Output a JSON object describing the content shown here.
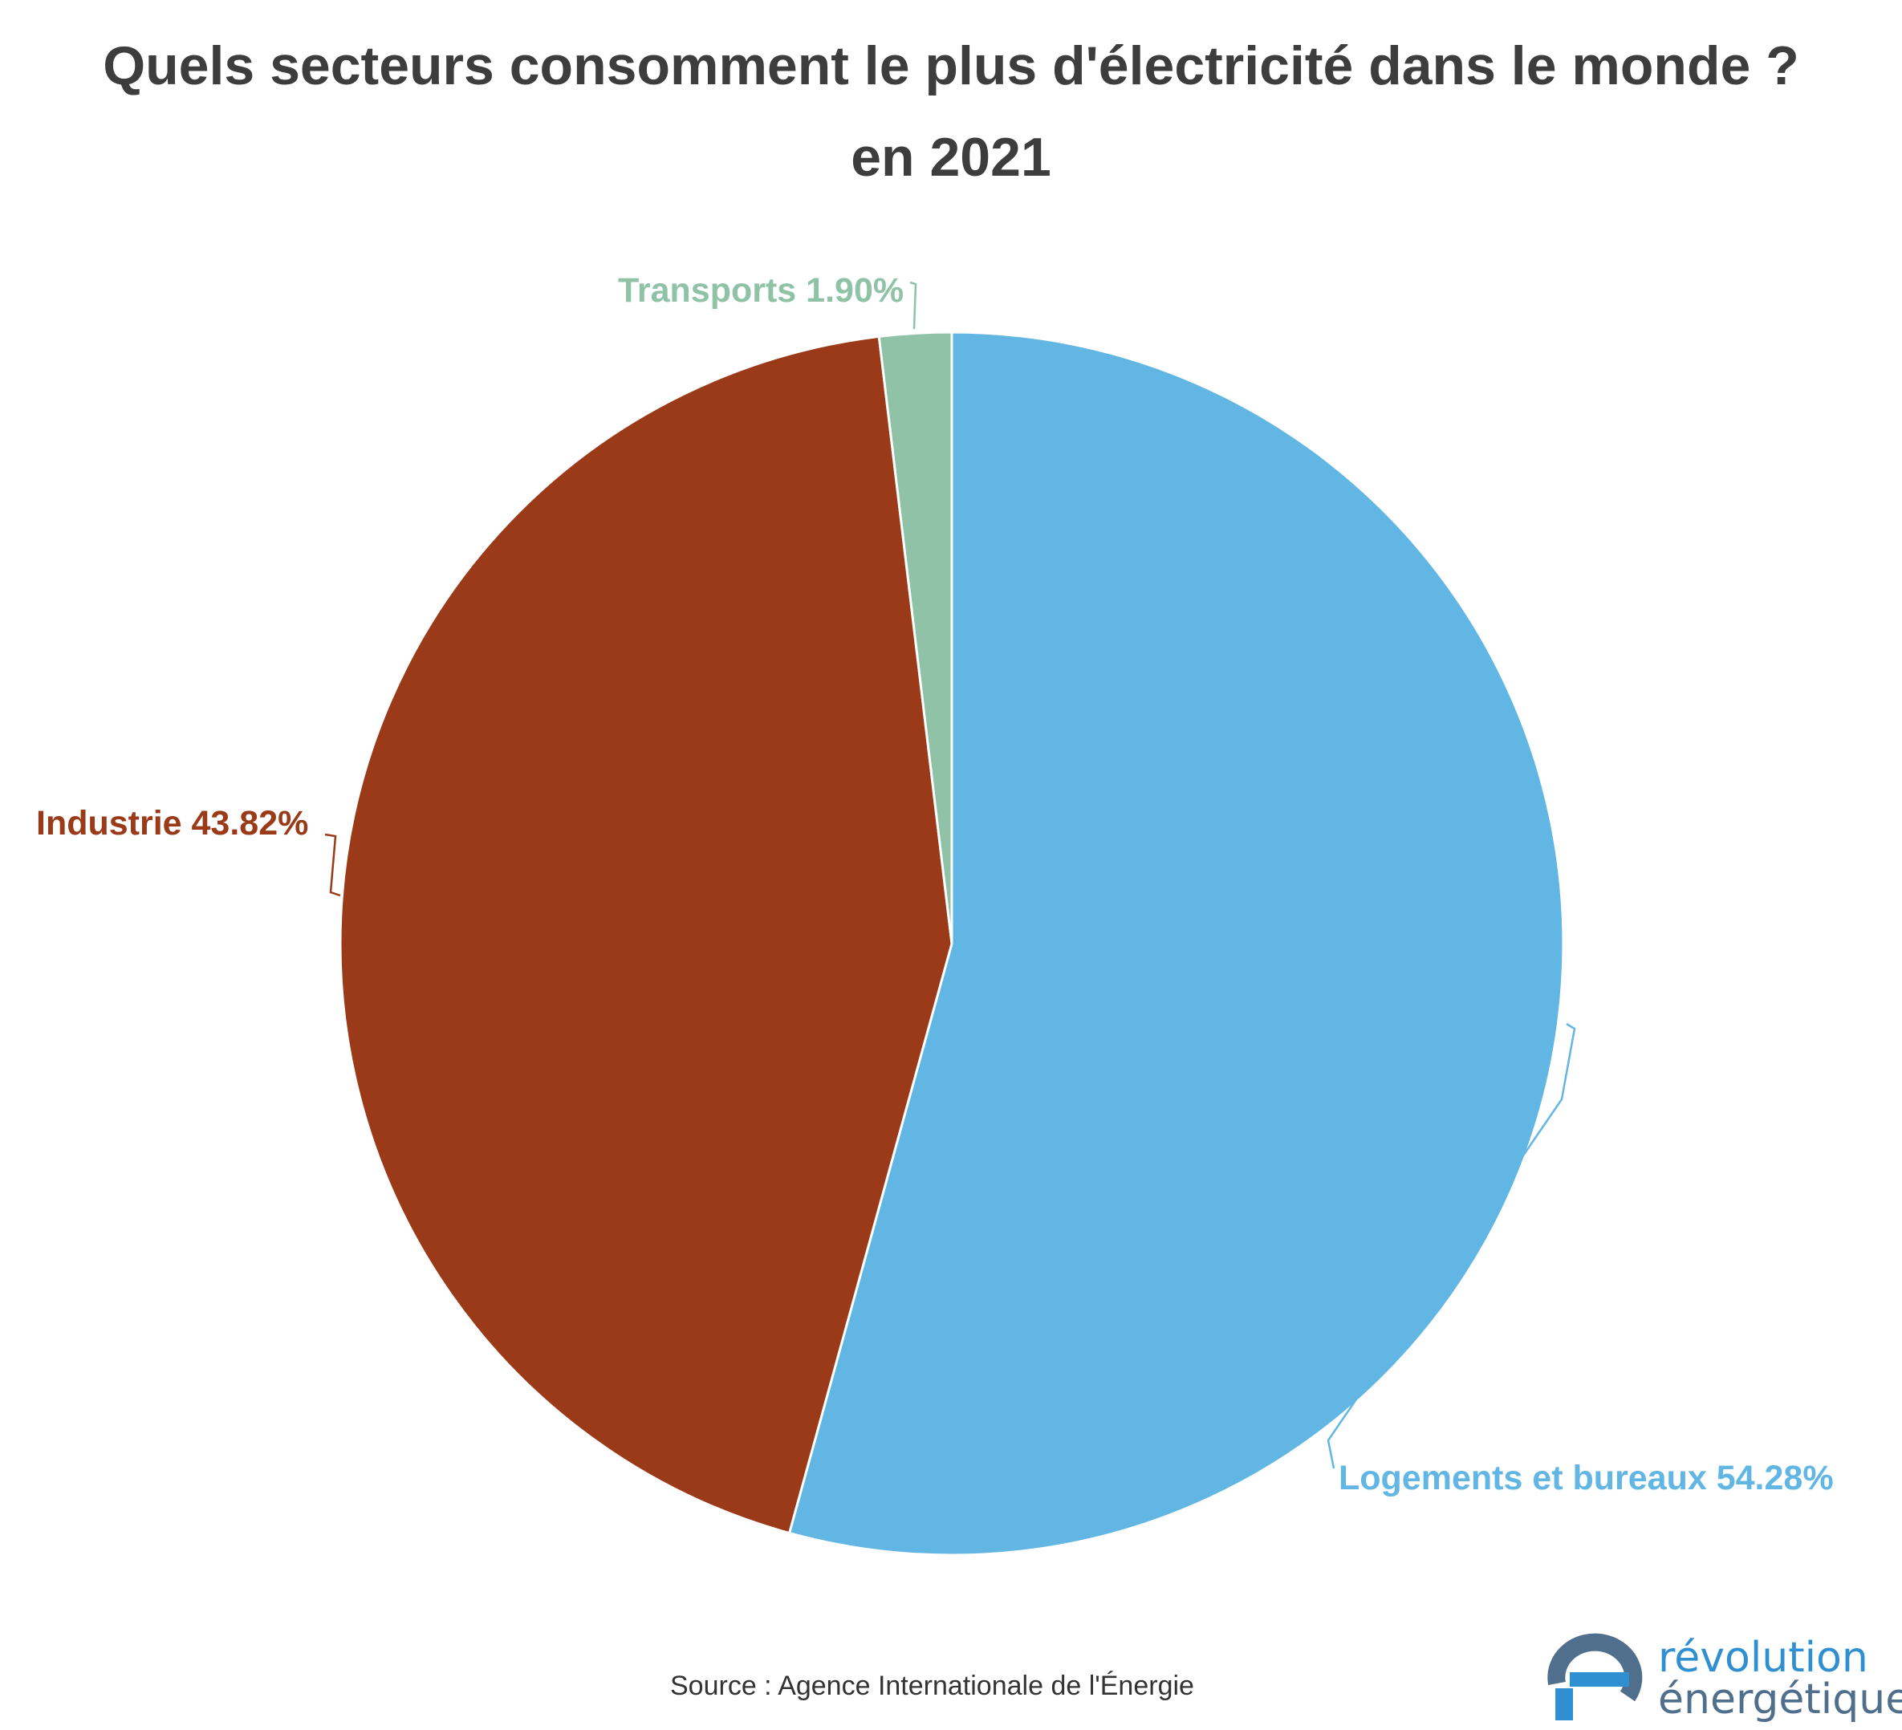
{
  "chart_data": {
    "type": "pie",
    "title": "Quels secteurs consomment le plus d'électricité dans le monde ?",
    "subtitle": "en 2021",
    "slices": [
      {
        "label": "Logements et bureaux",
        "value": 54.28,
        "display": "Logements et bureaux 54.28%",
        "color": "#61b6e4"
      },
      {
        "label": "Industrie",
        "value": 43.82,
        "display": "Industrie 43.82%",
        "color": "#9a3a18"
      },
      {
        "label": "Transports",
        "value": 1.9,
        "display": "Transports 1.90%",
        "color": "#8fc2a6"
      }
    ],
    "start_angle_deg": 0,
    "direction": "clockwise",
    "label_colors_match_slices": true
  },
  "footer": {
    "source": "Source : Agence Internationale de l'Énergie"
  },
  "logo": {
    "line1": "révolution",
    "line2": "énergétique",
    "colors": {
      "accent": "#2f8fd0",
      "dark": "#4f6f8c"
    }
  }
}
